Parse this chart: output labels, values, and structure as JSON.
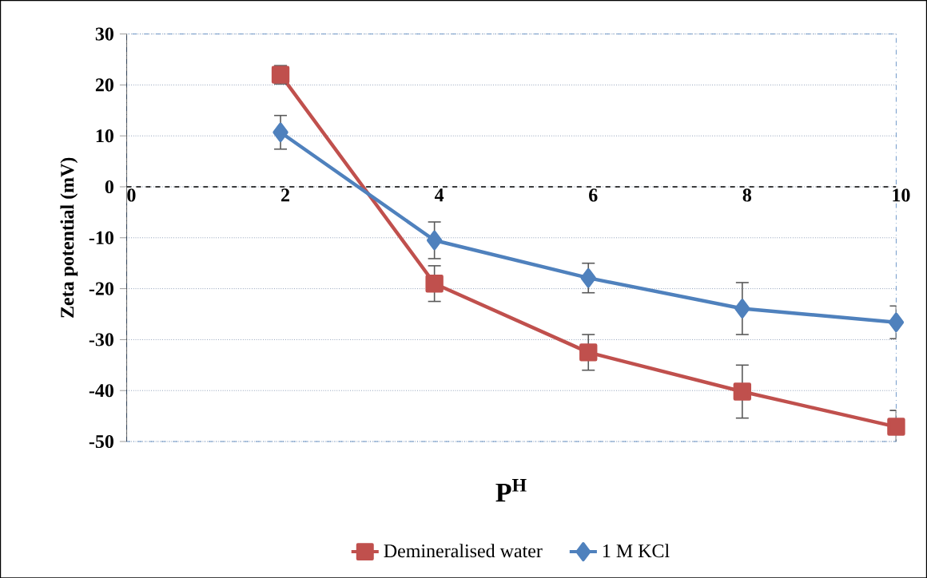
{
  "chart_data": {
    "type": "line",
    "xlabel": "P$^{H}$",
    "ylabel": "Zeta potential (mV)",
    "x": [
      2,
      4,
      6,
      8,
      10
    ],
    "series": [
      {
        "name": "Demineralised water",
        "color": "#c0504d",
        "marker": "square",
        "values": [
          22,
          -19,
          -32.5,
          -40.2,
          -47.1
        ],
        "errors": [
          1.8,
          3.5,
          3.5,
          5.2,
          3.2
        ]
      },
      {
        "name": "1 M KCl",
        "color": "#4f81bd",
        "marker": "diamond",
        "values": [
          10.7,
          -10.5,
          -17.9,
          -23.9,
          -26.6
        ],
        "errors": [
          3.3,
          3.6,
          2.9,
          5.1,
          3.2
        ]
      }
    ],
    "xlim": [
      0,
      10
    ],
    "xticks": [
      0,
      2,
      4,
      6,
      8,
      10
    ],
    "ylim": [
      -50,
      30
    ],
    "yticks": [
      -50,
      -40,
      -30,
      -20,
      -10,
      0,
      10,
      20,
      30
    ],
    "ref_lines": [
      {
        "axis": "y",
        "value": 0,
        "color": "#000000",
        "line_style": "dashed"
      }
    ],
    "grid": "y",
    "legend": "bottom",
    "line_style": "solid"
  }
}
